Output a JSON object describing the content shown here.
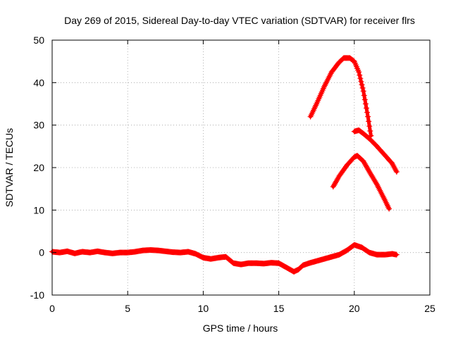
{
  "chart_data": {
    "type": "scatter",
    "title": "Day 269 of 2015, Sidereal Day-to-day VTEC variation (SDTVAR) for receiver flrs",
    "xlabel": "GPS time / hours",
    "ylabel": "SDTVAR / TECUs",
    "xlim": [
      0,
      25
    ],
    "ylim": [
      -10,
      50
    ],
    "x_ticks": [
      0,
      5,
      10,
      15,
      20,
      25
    ],
    "x_tick_labels": [
      "0",
      "5",
      "10",
      "15",
      "20",
      "25"
    ],
    "y_ticks": [
      -10,
      0,
      10,
      20,
      30,
      40,
      50
    ],
    "y_tick_labels": [
      "-10",
      "0",
      "10",
      "20",
      "30",
      "40",
      "50"
    ],
    "grid": true,
    "legend": "none",
    "marker": "plus",
    "color": "#ff0000",
    "series": [
      {
        "x": [
          0,
          0.5,
          1,
          1.5,
          2,
          2.5,
          3,
          3.5,
          4,
          4.5,
          5,
          5.5,
          6,
          6.5,
          7,
          7.5,
          8,
          8.5,
          9,
          9.5,
          10,
          10.5,
          11,
          11.5,
          12,
          12.5,
          13,
          13.5,
          14,
          14.5,
          15,
          15.5,
          16,
          16.3,
          16.6,
          17,
          17.5,
          18,
          18.5,
          19,
          19.5,
          20,
          20.5,
          21,
          21.5,
          22,
          22.5,
          22.8
        ],
        "y": [
          0.2,
          0,
          0.3,
          -0.2,
          0.2,
          0,
          0.3,
          0,
          -0.2,
          0,
          0,
          0.2,
          0.5,
          0.6,
          0.5,
          0.3,
          0.1,
          0,
          0.2,
          -0.3,
          -1.2,
          -1.5,
          -1.2,
          -1.0,
          -2.5,
          -2.8,
          -2.5,
          -2.5,
          -2.6,
          -2.4,
          -2.5,
          -3.5,
          -4.5,
          -4,
          -3,
          -2.5,
          -2,
          -1.5,
          -1,
          -0.5,
          0.5,
          1.8,
          1.2,
          0,
          -0.5,
          -0.5,
          -0.3,
          -0.5
        ]
      },
      {
        "x": [
          17.1,
          17.5,
          18,
          18.5,
          19,
          19.3,
          19.7,
          20,
          20.3,
          20.6,
          20.9,
          21.1
        ],
        "y": [
          32,
          35,
          39,
          42.5,
          44.8,
          45.8,
          45.8,
          45,
          42.5,
          38,
          32,
          27.5
        ]
      },
      {
        "x": [
          20,
          20.3,
          20.6,
          21,
          21.5,
          22,
          22.5,
          22.8
        ],
        "y": [
          28.5,
          28.8,
          28,
          26.8,
          25,
          23,
          21,
          19
        ]
      },
      {
        "x": [
          18.6,
          19,
          19.5,
          20,
          20.2,
          20.6,
          21,
          21.5,
          22,
          22.3
        ],
        "y": [
          15.5,
          18,
          20.5,
          22.5,
          22.8,
          21.5,
          19,
          16,
          12.5,
          10.3
        ]
      }
    ]
  }
}
